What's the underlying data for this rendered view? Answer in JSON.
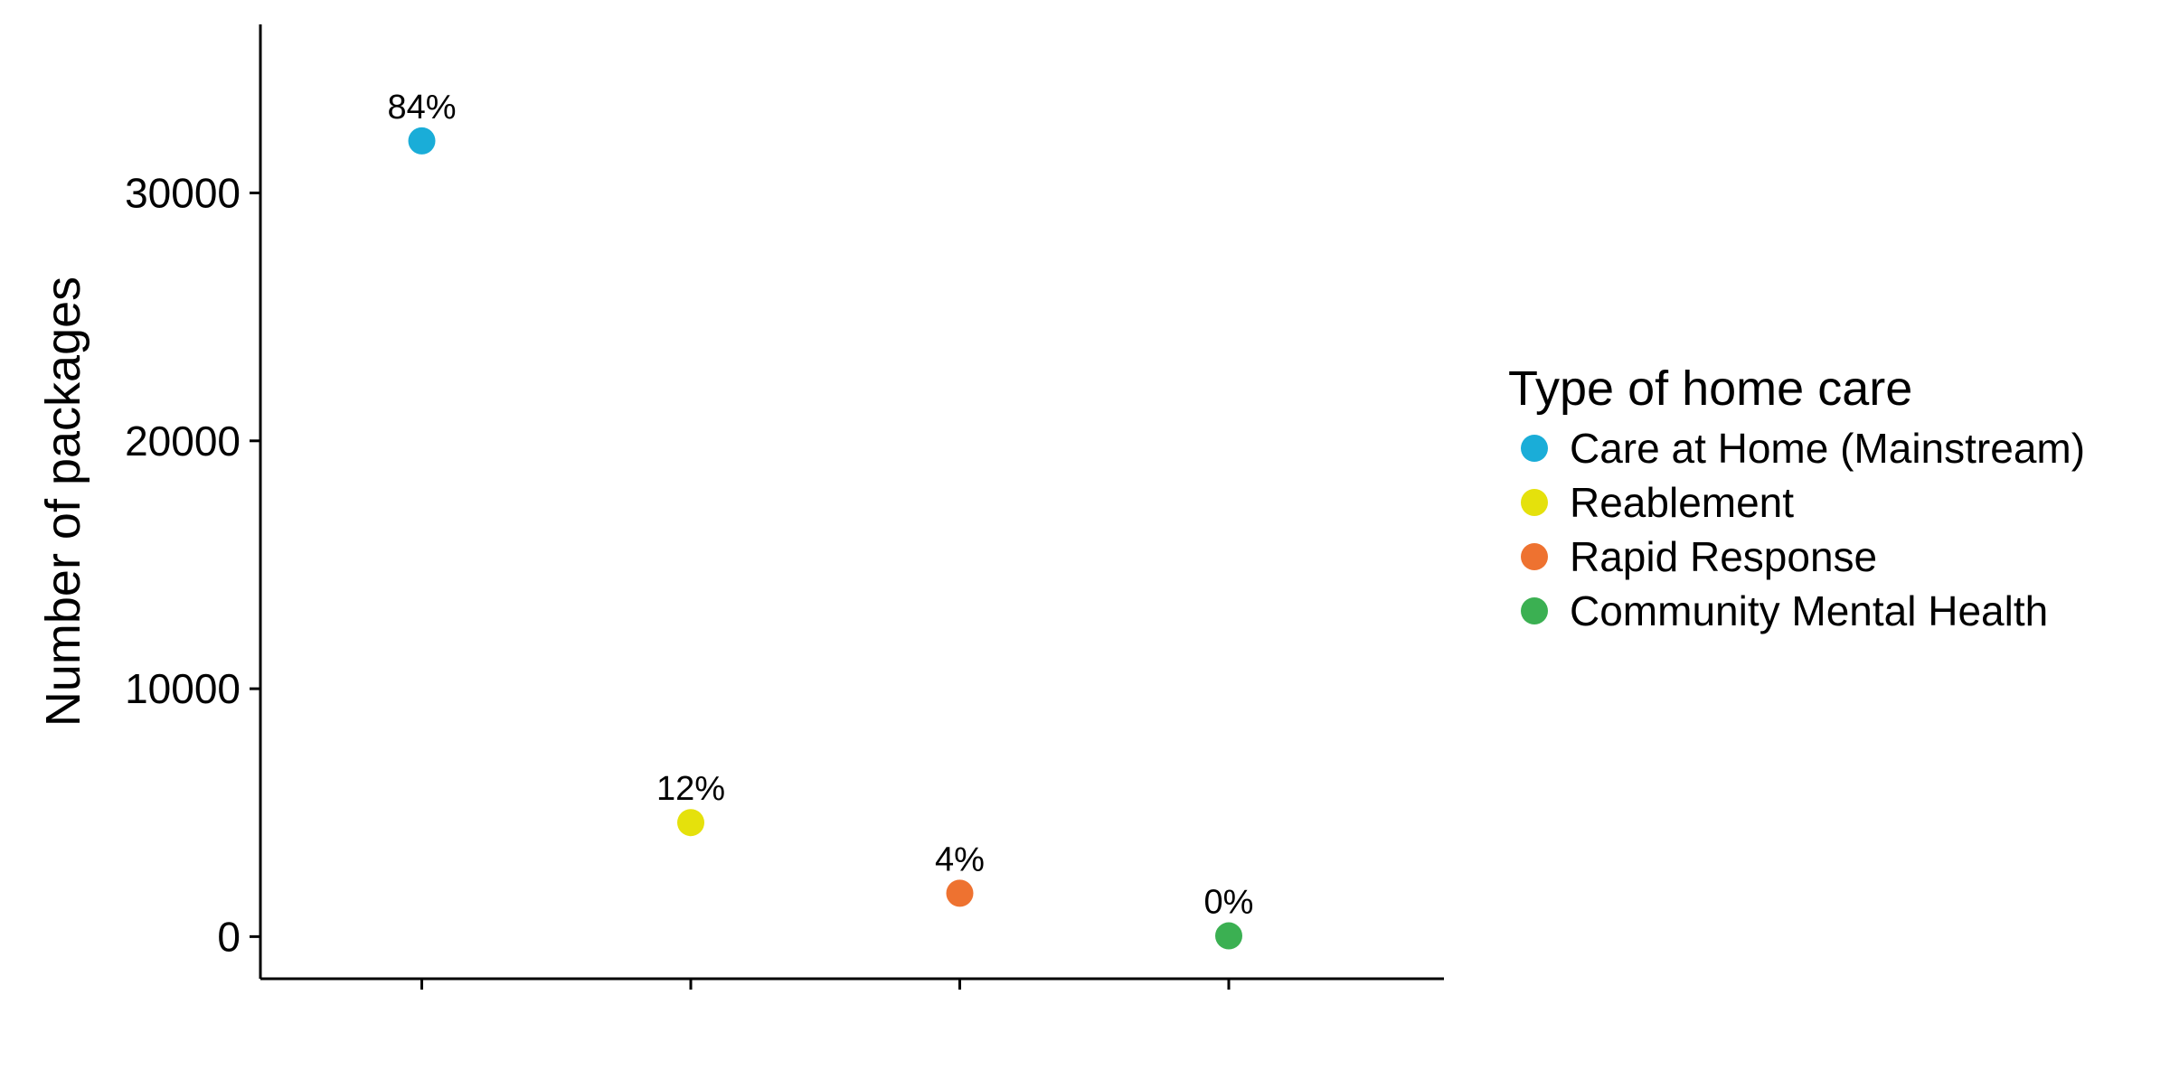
{
  "chart_data": {
    "type": "scatter",
    "title": "",
    "xlabel": "",
    "ylabel": "Number of packages",
    "ylim": [
      -1700,
      36800
    ],
    "yticks": [
      0,
      10000,
      20000,
      30000
    ],
    "grid": false,
    "legend_position": "right",
    "legend_title": "Type of home care",
    "categories": [
      "Care at Home (Mainstream)",
      "Reablement",
      "Rapid Response",
      "Community Mental Health"
    ],
    "points": [
      {
        "category": "Care at Home (Mainstream)",
        "y": 32100,
        "label": "84%",
        "color": "#1AADD8"
      },
      {
        "category": "Reablement",
        "y": 4600,
        "label": "12%",
        "color": "#E5E10C"
      },
      {
        "category": "Rapid Response",
        "y": 1750,
        "label": "4%",
        "color": "#EE7230"
      },
      {
        "category": "Community Mental Health",
        "y": 30,
        "label": "0%",
        "color": "#3BB052"
      }
    ]
  }
}
